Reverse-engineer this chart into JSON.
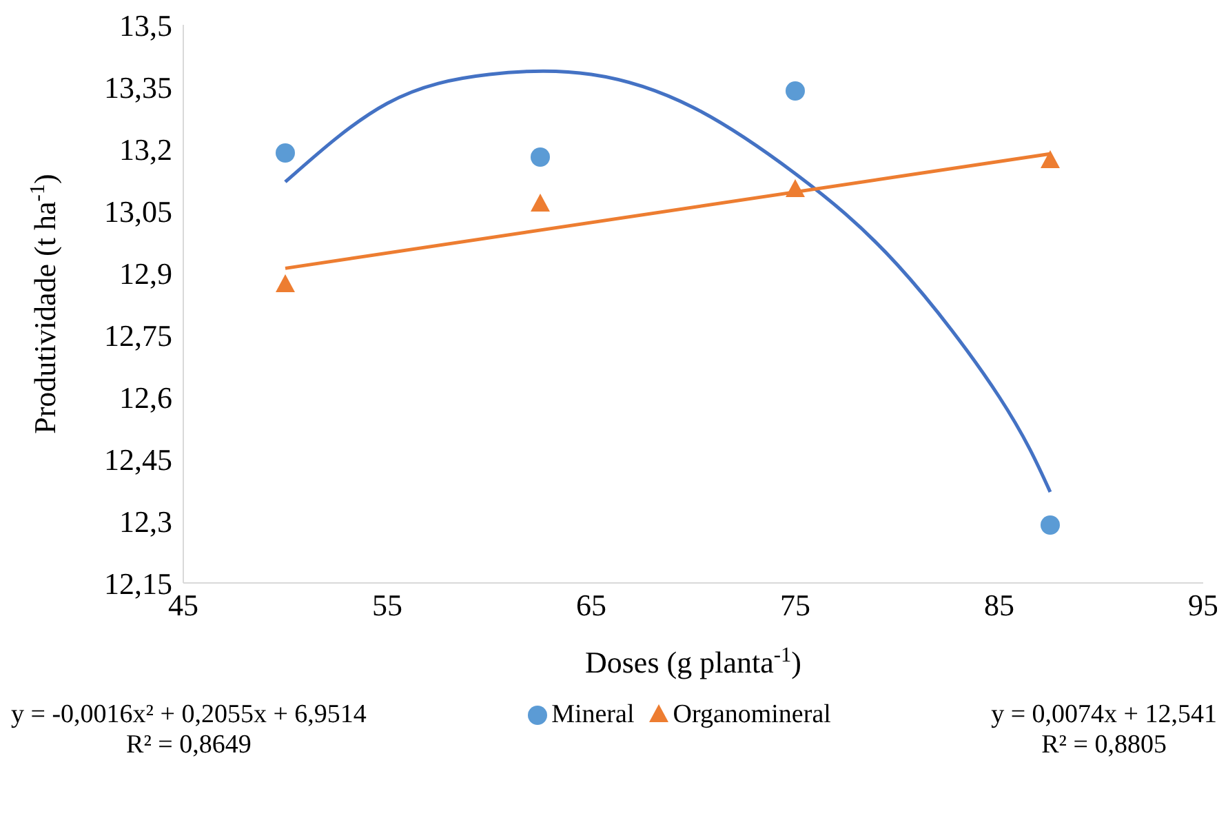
{
  "chart_data": {
    "type": "scatter",
    "xlabel": "Doses (g planta$^{-1}$)",
    "ylabel": "Produtividade  (t ha$^{-1}$)",
    "xlim": [
      45,
      95
    ],
    "xticks": [
      45,
      55,
      65,
      75,
      85,
      95
    ],
    "ylim": [
      12.15,
      13.5
    ],
    "yticks": [
      {
        "value": 12.15,
        "label": "12,15"
      },
      {
        "value": 12.3,
        "label": "12,3"
      },
      {
        "value": 12.45,
        "label": "12,45"
      },
      {
        "value": 12.6,
        "label": "12,6"
      },
      {
        "value": 12.75,
        "label": "12,75"
      },
      {
        "value": 12.9,
        "label": "12,9"
      },
      {
        "value": 13.05,
        "label": "13,05"
      },
      {
        "value": 13.2,
        "label": "13,2"
      },
      {
        "value": 13.35,
        "label": "13,35"
      },
      {
        "value": 13.5,
        "label": "13,5"
      }
    ],
    "grid": false,
    "legend": "bottom",
    "series": [
      {
        "name": "Mineral",
        "marker": "circle",
        "color": "#5b9bd5",
        "x": [
          50,
          62.5,
          75,
          87.5
        ],
        "values": [
          13.19,
          13.18,
          13.34,
          12.29
        ]
      },
      {
        "name": "Organomineral",
        "marker": "triangle",
        "color": "#ed7d31",
        "x": [
          50,
          62.5,
          75,
          87.5
        ],
        "values": [
          12.87,
          13.065,
          13.1,
          13.17
        ]
      },
      {
        "type": "line",
        "marker": "none",
        "color": "#4472c4",
        "x": [
          50,
          55,
          60,
          65,
          70,
          75,
          80,
          85,
          87.5
        ],
        "values": [
          13.12,
          13.31,
          13.38,
          13.38,
          13.3,
          13.14,
          12.92,
          12.6,
          12.37
        ]
      },
      {
        "type": "line",
        "marker": "none",
        "color": "#ed7d31",
        "x": [
          50,
          87.5
        ],
        "values": [
          12.911,
          13.188
        ]
      }
    ],
    "annotations": [
      "y = -0,0016x² + 0,2055x + 6,9514",
      "R² = 0,8649",
      "y = 0,0074x + 12,541",
      "R² = 0,8805"
    ]
  }
}
